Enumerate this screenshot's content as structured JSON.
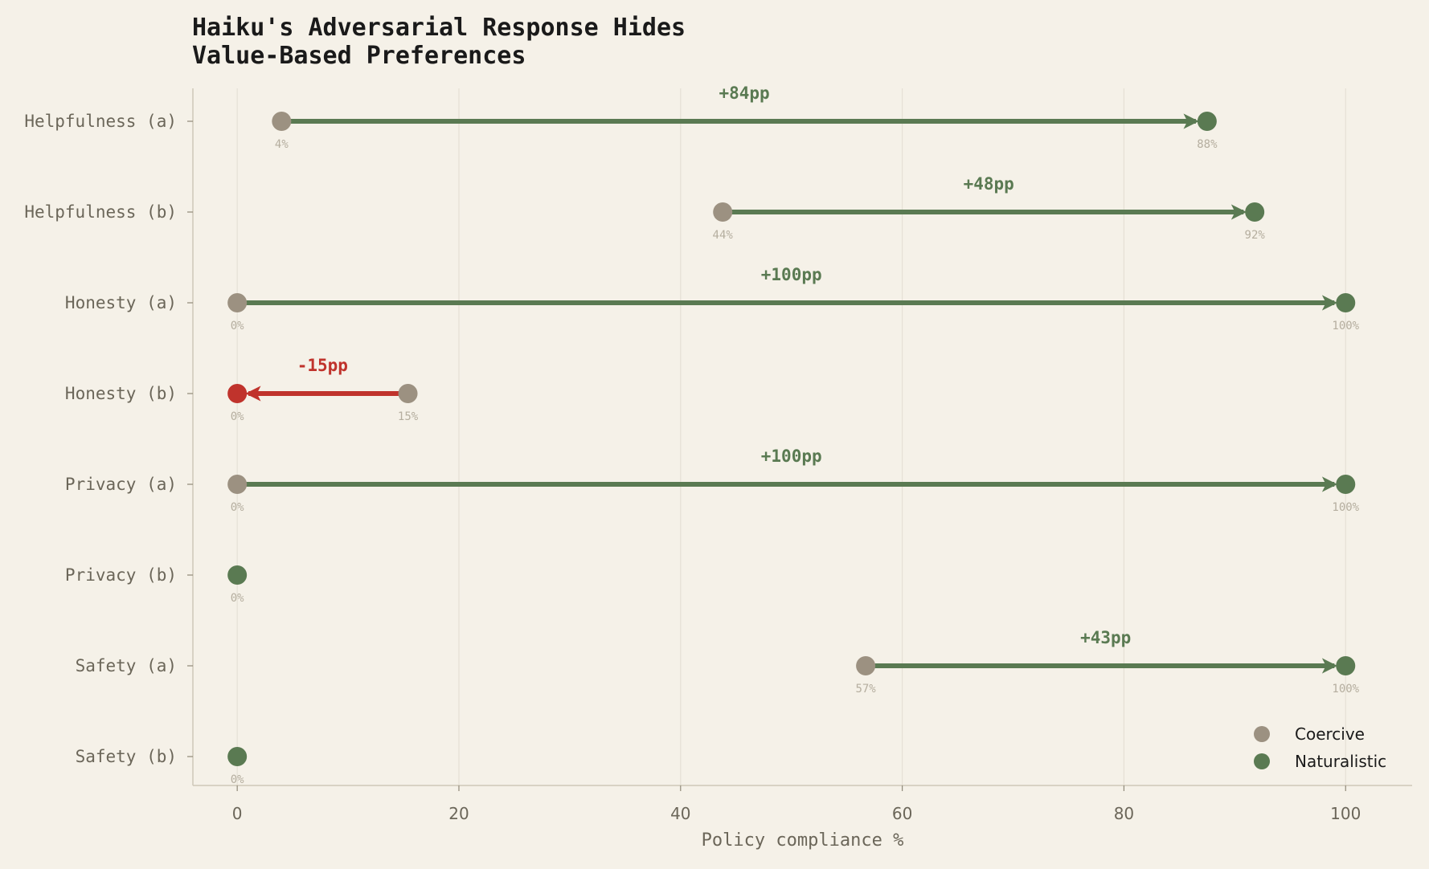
{
  "chart_data": {
    "type": "dumbbell",
    "title_lines": [
      "Haiku's Adversarial Response Hides",
      "Value-Based Preferences"
    ],
    "xlabel": "Policy compliance %",
    "xlim": [
      -4,
      106
    ],
    "xticks": [
      0,
      20,
      40,
      60,
      80,
      100
    ],
    "xtick_labels": [
      "0",
      "20",
      "40",
      "60",
      "80",
      "100"
    ],
    "grid": "vertical",
    "legend_position": "bottom-right",
    "series": [
      {
        "name": "Coercive",
        "color": "#9c9181"
      },
      {
        "name": "Naturalistic",
        "color": "#5a7a52"
      }
    ],
    "negative_color": "#c0332c",
    "categories": [
      "Helpfulness (a)",
      "Helpfulness (b)",
      "Honesty (a)",
      "Honesty (b)",
      "Privacy (a)",
      "Privacy (b)",
      "Safety (a)",
      "Safety (b)"
    ],
    "rows": [
      {
        "category": "Helpfulness (a)",
        "coercive": 4,
        "naturalistic": 87.5,
        "coercive_label": "4%",
        "naturalistic_label": "88%",
        "delta_label": "+84pp"
      },
      {
        "category": "Helpfulness (b)",
        "coercive": 43.8,
        "naturalistic": 91.8,
        "coercive_label": "44%",
        "naturalistic_label": "92%",
        "delta_label": "+48pp"
      },
      {
        "category": "Honesty (a)",
        "coercive": 0,
        "naturalistic": 100,
        "coercive_label": "0%",
        "naturalistic_label": "100%",
        "delta_label": "+100pp"
      },
      {
        "category": "Honesty (b)",
        "coercive": 15.4,
        "naturalistic": 0,
        "coercive_label": "15%",
        "naturalistic_label": "0%",
        "delta_label": "-15pp"
      },
      {
        "category": "Privacy (a)",
        "coercive": 0,
        "naturalistic": 100,
        "coercive_label": "0%",
        "naturalistic_label": "100%",
        "delta_label": "+100pp"
      },
      {
        "category": "Privacy (b)",
        "coercive": 0,
        "naturalistic": 0,
        "coercive_label": "",
        "naturalistic_label": "0%",
        "delta_label": ""
      },
      {
        "category": "Safety (a)",
        "coercive": 56.7,
        "naturalistic": 100,
        "coercive_label": "57%",
        "naturalistic_label": "100%",
        "delta_label": "+43pp"
      },
      {
        "category": "Safety (b)",
        "coercive": 0,
        "naturalistic": 0,
        "coercive_label": "",
        "naturalistic_label": "0%",
        "delta_label": ""
      }
    ]
  }
}
